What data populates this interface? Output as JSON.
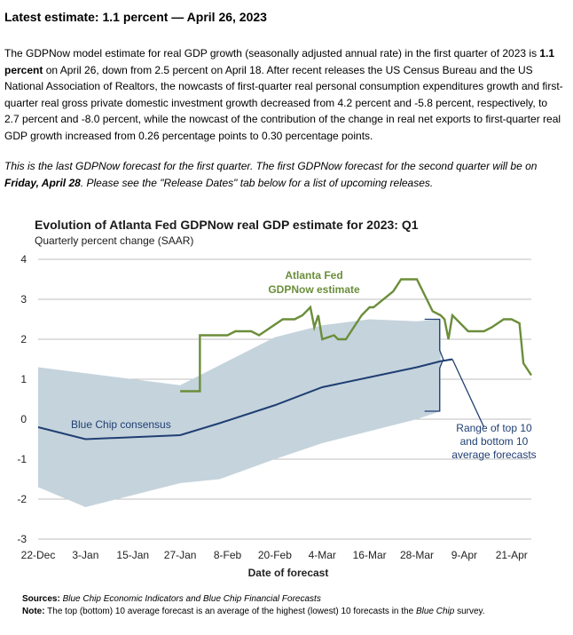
{
  "headline": "Latest estimate: 1.1 percent — April 26, 2023",
  "paragraph1": {
    "t1": "The GDPNow model estimate for real GDP growth (seasonally adjusted annual rate) in the first quarter of 2023 is ",
    "b1": "1.1 percent",
    "t2": " on April 26, down from 2.5 percent on April 18. After recent releases the US Census Bureau and the US National Association of Realtors, the nowcasts of first-quarter real personal consumption expenditures growth and first-quarter real gross private domestic investment growth decreased from 4.2 percent and -5.8 percent, respectively, to 2.7 percent and -8.0 percent, while the nowcast of the contribution of the change in real net exports to first-quarter real GDP growth increased from 0.26 percentage points to 0.30 percentage points."
  },
  "paragraph2": {
    "t1": "This is the last GDPNow forecast for the first quarter. The first GDPNow forecast for the second quarter will be on ",
    "b1": "Friday, April 28",
    "t2": ". Please see the \"Release Dates\" tab below for a list of upcoming releases."
  },
  "sources": {
    "sources_label": "Sources:",
    "sources_text": "Blue Chip Economic Indicators and Blue Chip Financial Forecasts",
    "note_label": "Note:",
    "note_t1": " The top (bottom) 10 average forecast is an average of the highest (lowest) 10 forecasts in the ",
    "note_i": "Blue Chip",
    "note_t2": " survey."
  },
  "chart_data": {
    "type": "line",
    "title": "Evolution of Atlanta Fed GDPNow real GDP estimate for 2023: Q1",
    "subtitle": "Quarterly percent change (SAAR)",
    "xlabel": "Date of forecast",
    "ylabel": "",
    "ylim": [
      -3,
      4
    ],
    "yticks": [
      4,
      3,
      2,
      1,
      0,
      -1,
      -2,
      -3
    ],
    "yticklabels": [
      "4",
      "3",
      "2",
      "1",
      "0",
      "-1",
      "-2",
      "-3"
    ],
    "x_ticks": [
      "2022-12-22",
      "2023-01-03",
      "2023-01-15",
      "2023-01-27",
      "2023-02-08",
      "2023-02-20",
      "2023-03-04",
      "2023-03-16",
      "2023-03-28",
      "2023-04-09",
      "2023-04-21"
    ],
    "x_ticklabels": [
      "22-Dec",
      "3-Jan",
      "15-Jan",
      "27-Jan",
      "8-Feb",
      "20-Feb",
      "4-Mar",
      "16-Mar",
      "28-Mar",
      "9-Apr",
      "21-Apr"
    ],
    "xlim": [
      "2022-12-22",
      "2023-04-26"
    ],
    "grid": true,
    "colors": {
      "gdpnow": "#6b8e3a",
      "bluechip": "#1f3f73",
      "range": "#c5d3dc",
      "grid": "#bfbfbf"
    },
    "series": [
      {
        "name": "Atlanta Fed GDPNow estimate",
        "x": [
          "2023-01-27",
          "2023-02-01",
          "2023-02-01",
          "2023-02-06",
          "2023-02-08",
          "2023-02-10",
          "2023-02-14",
          "2023-02-16",
          "2023-02-22",
          "2023-02-25",
          "2023-02-27",
          "2023-02-28",
          "2023-03-01",
          "2023-03-02",
          "2023-03-03",
          "2023-03-04",
          "2023-03-07",
          "2023-03-08",
          "2023-03-10",
          "2023-03-14",
          "2023-03-16",
          "2023-03-17",
          "2023-03-22",
          "2023-03-24",
          "2023-03-28",
          "2023-04-01",
          "2023-04-03",
          "2023-04-04",
          "2023-04-05",
          "2023-04-06",
          "2023-04-10",
          "2023-04-11",
          "2023-04-14",
          "2023-04-16",
          "2023-04-19",
          "2023-04-21",
          "2023-04-23",
          "2023-04-24",
          "2023-04-26"
        ],
        "y": [
          0.7,
          0.7,
          2.1,
          2.1,
          2.1,
          2.2,
          2.2,
          2.1,
          2.5,
          2.5,
          2.6,
          2.7,
          2.8,
          2.3,
          2.6,
          2.0,
          2.1,
          2.0,
          2.0,
          2.6,
          2.8,
          2.8,
          3.2,
          3.5,
          3.5,
          2.7,
          2.6,
          2.5,
          2.0,
          2.6,
          2.2,
          2.2,
          2.2,
          2.3,
          2.5,
          2.5,
          2.4,
          1.4,
          1.1
        ]
      },
      {
        "name": "Blue Chip consensus",
        "x": [
          "2022-12-22",
          "2023-01-03",
          "2023-01-27",
          "2023-02-06",
          "2023-02-20",
          "2023-03-04",
          "2023-03-16",
          "2023-03-28",
          "2023-04-03",
          "2023-04-06"
        ],
        "y": [
          -0.2,
          -0.5,
          -0.4,
          -0.1,
          0.35,
          0.8,
          1.05,
          1.3,
          1.45,
          1.5
        ]
      },
      {
        "name": "Blue Chip consensus (extension)",
        "x": [
          "2023-04-06",
          "2023-04-14"
        ],
        "y": [
          1.5,
          -0.2
        ]
      }
    ],
    "range_band": {
      "name": "Range of top 10 and bottom 10 average forecasts",
      "x": [
        "2022-12-22",
        "2023-01-03",
        "2023-01-27",
        "2023-02-06",
        "2023-02-20",
        "2023-03-04",
        "2023-03-16",
        "2023-03-28",
        "2023-04-03"
      ],
      "top": [
        1.3,
        1.15,
        0.85,
        1.35,
        2.05,
        2.35,
        2.5,
        2.45,
        2.5
      ],
      "bottom": [
        -1.7,
        -2.2,
        -1.6,
        -1.5,
        -1.0,
        -0.6,
        -0.3,
        0.0,
        0.2
      ]
    },
    "annotations": {
      "gdpnow_line1": "Atlanta Fed",
      "gdpnow_line2": "GDPNow estimate",
      "bluechip": "Blue Chip consensus",
      "range_line1": "Range of top 10",
      "range_line2": "and bottom 10",
      "range_line3": "average forecasts"
    }
  }
}
